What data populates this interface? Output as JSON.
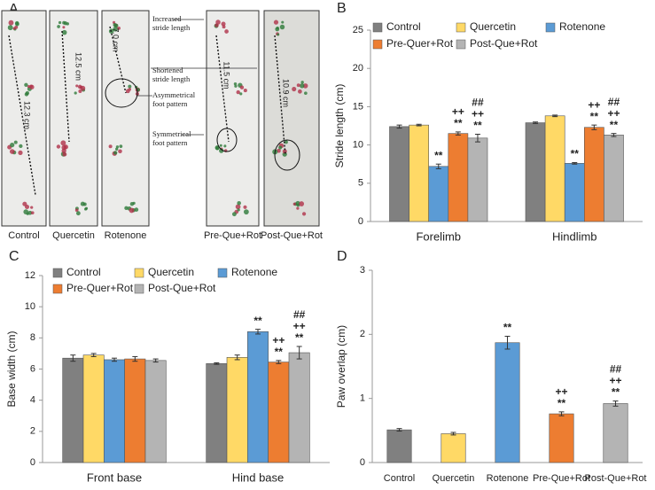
{
  "photo_panel": {
    "label": "A",
    "photos": [
      {
        "label": "Control",
        "measurement": "12.3 cm"
      },
      {
        "label": "Quercetin",
        "measurement": "12.5 cm"
      },
      {
        "label": "Rotenone",
        "measurement": "7.0 cm"
      },
      {
        "label": "Pre-Que+Rot",
        "measurement": "11.5 cm"
      },
      {
        "label": "Post-Que+Rot",
        "measurement": "10.9 cm"
      }
    ],
    "callouts": [
      {
        "lines": [
          "Increased",
          "stride length"
        ]
      },
      {
        "lines": [
          "Shortened",
          "stride length"
        ]
      },
      {
        "lines": [
          "Asymmetrical",
          "foot pattern"
        ]
      },
      {
        "lines": [
          "Symmetrical",
          "foot pattern"
        ]
      }
    ]
  },
  "chart_data": [
    {
      "type": "bar",
      "label": "B",
      "y_label": "Stride length (cm)",
      "categories": [
        "Forelimb",
        "Hindlimb"
      ],
      "ylim": [
        0,
        25
      ],
      "yticks": [
        0,
        5,
        10,
        15,
        20,
        25
      ],
      "grid": false,
      "legend": "top",
      "series": [
        {
          "name": "Control",
          "color": "#808080",
          "values": [
            12.4,
            12.9
          ],
          "errors": [
            0.2,
            0.1
          ],
          "annotations": [
            [],
            []
          ]
        },
        {
          "name": "Quercetin",
          "color": "#ffd966",
          "values": [
            12.6,
            13.8
          ],
          "errors": [
            0.1,
            0.1
          ],
          "annotations": [
            [],
            []
          ]
        },
        {
          "name": "Rotenone",
          "color": "#5b9bd5",
          "values": [
            7.2,
            7.6
          ],
          "errors": [
            0.3,
            0.1
          ],
          "annotations": [
            [
              "**"
            ],
            [
              "**"
            ]
          ]
        },
        {
          "name": "Pre-Quer+Rot",
          "color": "#ed7d31",
          "values": [
            11.5,
            12.3
          ],
          "errors": [
            0.2,
            0.3
          ],
          "annotations": [
            [
              "++",
              "**"
            ],
            [
              "++",
              "**"
            ]
          ]
        },
        {
          "name": "Post-Que+Rot",
          "color": "#b4b4b4",
          "values": [
            10.9,
            11.3
          ],
          "errors": [
            0.5,
            0.2
          ],
          "annotations": [
            [
              "##",
              "++",
              "**"
            ],
            [
              "##",
              "++",
              "**"
            ]
          ]
        }
      ]
    },
    {
      "type": "bar",
      "label": "C",
      "y_label": "Base width (cm)",
      "categories": [
        "Front base",
        "Hind base"
      ],
      "ylim": [
        0,
        12
      ],
      "yticks": [
        0,
        2,
        4,
        6,
        8,
        10,
        12
      ],
      "grid": false,
      "legend": "top",
      "series": [
        {
          "name": "Control",
          "color": "#808080",
          "values": [
            6.7,
            6.35
          ],
          "errors": [
            0.2,
            0.05
          ],
          "annotations": [
            [],
            []
          ]
        },
        {
          "name": "Quercetin",
          "color": "#ffd966",
          "values": [
            6.9,
            6.75
          ],
          "errors": [
            0.1,
            0.15
          ],
          "annotations": [
            [],
            []
          ]
        },
        {
          "name": "Rotenone",
          "color": "#5b9bd5",
          "values": [
            6.6,
            8.4
          ],
          "errors": [
            0.1,
            0.15
          ],
          "annotations": [
            [],
            [
              "**"
            ]
          ]
        },
        {
          "name": "Pre-Quer+Rot",
          "color": "#ed7d31",
          "values": [
            6.65,
            6.45
          ],
          "errors": [
            0.15,
            0.1
          ],
          "annotations": [
            [],
            [
              "++",
              "**"
            ]
          ]
        },
        {
          "name": "Post-Que+Rot",
          "color": "#b4b4b4",
          "values": [
            6.55,
            7.05
          ],
          "errors": [
            0.1,
            0.4
          ],
          "annotations": [
            [],
            [
              "##",
              "++",
              "**"
            ]
          ]
        }
      ]
    },
    {
      "type": "bar",
      "label": "D",
      "y_label": "Paw overlap (cm)",
      "categories": [
        "Control",
        "Quercetin",
        "Rotenone",
        "Pre-Que+Rot",
        "Post-Que+Rot"
      ],
      "ylim": [
        0,
        3
      ],
      "yticks": [
        0,
        1,
        2,
        3
      ],
      "grid": false,
      "series": [
        {
          "colors": [
            "#808080",
            "#ffd966",
            "#5b9bd5",
            "#ed7d31",
            "#b4b4b4"
          ],
          "values": [
            0.51,
            0.45,
            1.87,
            0.76,
            0.92
          ],
          "errors": [
            0.02,
            0.02,
            0.1,
            0.03,
            0.04
          ],
          "annotations": [
            [],
            [],
            [
              "**"
            ],
            [
              "++",
              "**"
            ],
            [
              "##",
              "++",
              "**"
            ]
          ]
        }
      ]
    }
  ]
}
